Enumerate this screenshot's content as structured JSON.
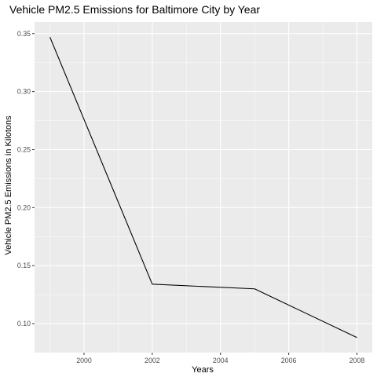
{
  "chart_data": {
    "type": "line",
    "title": "Vehicle PM2.5 Emissions for Baltimore City by Year",
    "xlabel": "Years",
    "ylabel": "Vehicle PM2.5 Emissions in Kilotons",
    "x": [
      1999,
      2002,
      2005,
      2008
    ],
    "series": [
      {
        "values": [
          0.347,
          0.134,
          0.13,
          0.088
        ]
      }
    ],
    "xlim": [
      1998.55,
      2008.45
    ],
    "ylim": [
      0.075,
      0.36
    ],
    "x_ticks": [
      2000,
      2002,
      2004,
      2006,
      2008
    ],
    "x_tick_labels": [
      "2000",
      "2002",
      "2004",
      "2006",
      "2008"
    ],
    "y_ticks": [
      0.1,
      0.15,
      0.2,
      0.25,
      0.3,
      0.35
    ],
    "y_tick_labels": [
      "0.10",
      "0.15",
      "0.20",
      "0.25",
      "0.30",
      "0.35"
    ],
    "grid": true,
    "colors": {
      "panel_background": "#ebebeb",
      "grid_major": "#ffffff",
      "line": "#000000",
      "tick_text": "#4d4d4d"
    }
  }
}
